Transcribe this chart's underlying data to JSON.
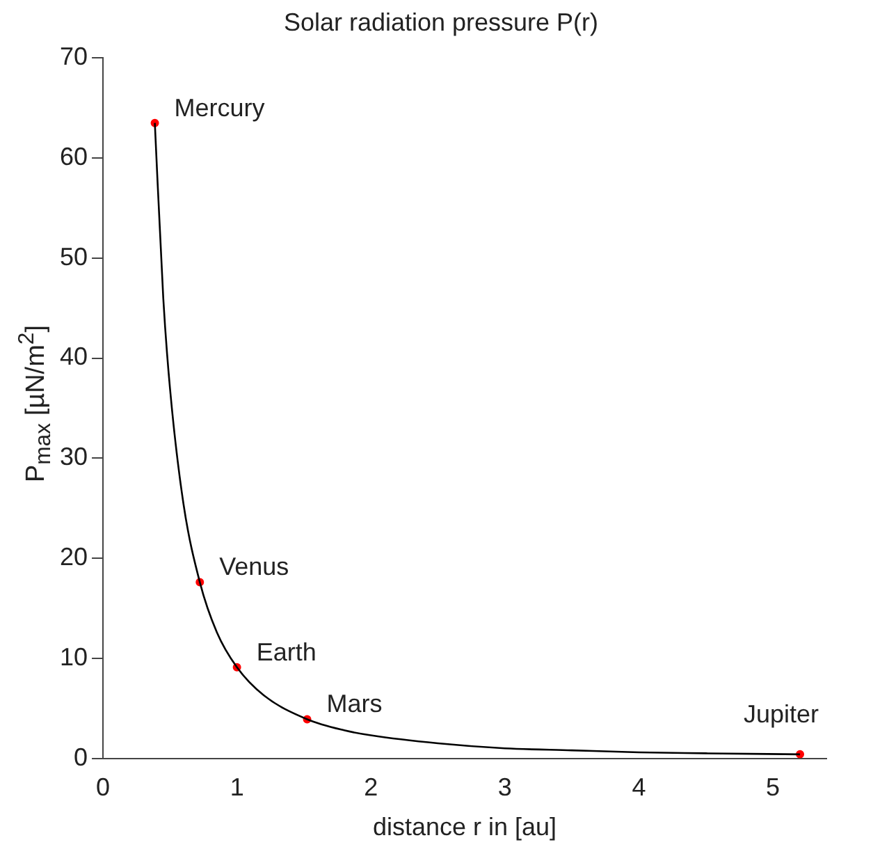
{
  "chart_data": {
    "type": "line",
    "title": "Solar radiation pressure P(r)",
    "xlabel": "distance r in [au]",
    "ylabel": "P$_{max}$ [µN/m$^{2}$]",
    "xlim": [
      0,
      5.4
    ],
    "xticks": [
      0,
      1,
      2,
      3,
      4,
      5
    ],
    "ylim": [
      0,
      70
    ],
    "yticks": [
      0,
      10,
      20,
      30,
      40,
      50,
      60,
      70
    ],
    "grid": false,
    "legend": false,
    "series": [
      {
        "color": "#000000",
        "marker": "none",
        "line_style": "solid",
        "x": [
          0.387,
          0.45,
          0.5,
          0.6,
          0.723,
          0.85,
          1.0,
          1.2,
          1.524,
          1.8,
          2.0,
          2.5,
          3.0,
          3.5,
          4.0,
          4.5,
          5.203
        ],
        "values": [
          63.5,
          46,
          37,
          25.5,
          17.6,
          12.6,
          9.1,
          6.3,
          3.9,
          2.8,
          2.3,
          1.5,
          1.0,
          0.8,
          0.6,
          0.5,
          0.4
        ]
      },
      {
        "type": "scatter",
        "color": "#ff0000",
        "marker": "circle",
        "x": [
          0.387,
          0.723,
          1.0,
          1.524,
          5.203
        ],
        "values": [
          63.5,
          17.6,
          9.1,
          3.9,
          0.4
        ]
      }
    ],
    "annotations": [
      {
        "text": "Mercury",
        "x": 0.387,
        "y": 63.5
      },
      {
        "text": "Venus",
        "x": 0.723,
        "y": 17.6
      },
      {
        "text": "Earth",
        "x": 1.0,
        "y": 9.1
      },
      {
        "text": "Mars",
        "x": 1.524,
        "y": 3.9
      },
      {
        "text": "Jupiter",
        "x": 5.203,
        "y": 0.4
      }
    ]
  }
}
